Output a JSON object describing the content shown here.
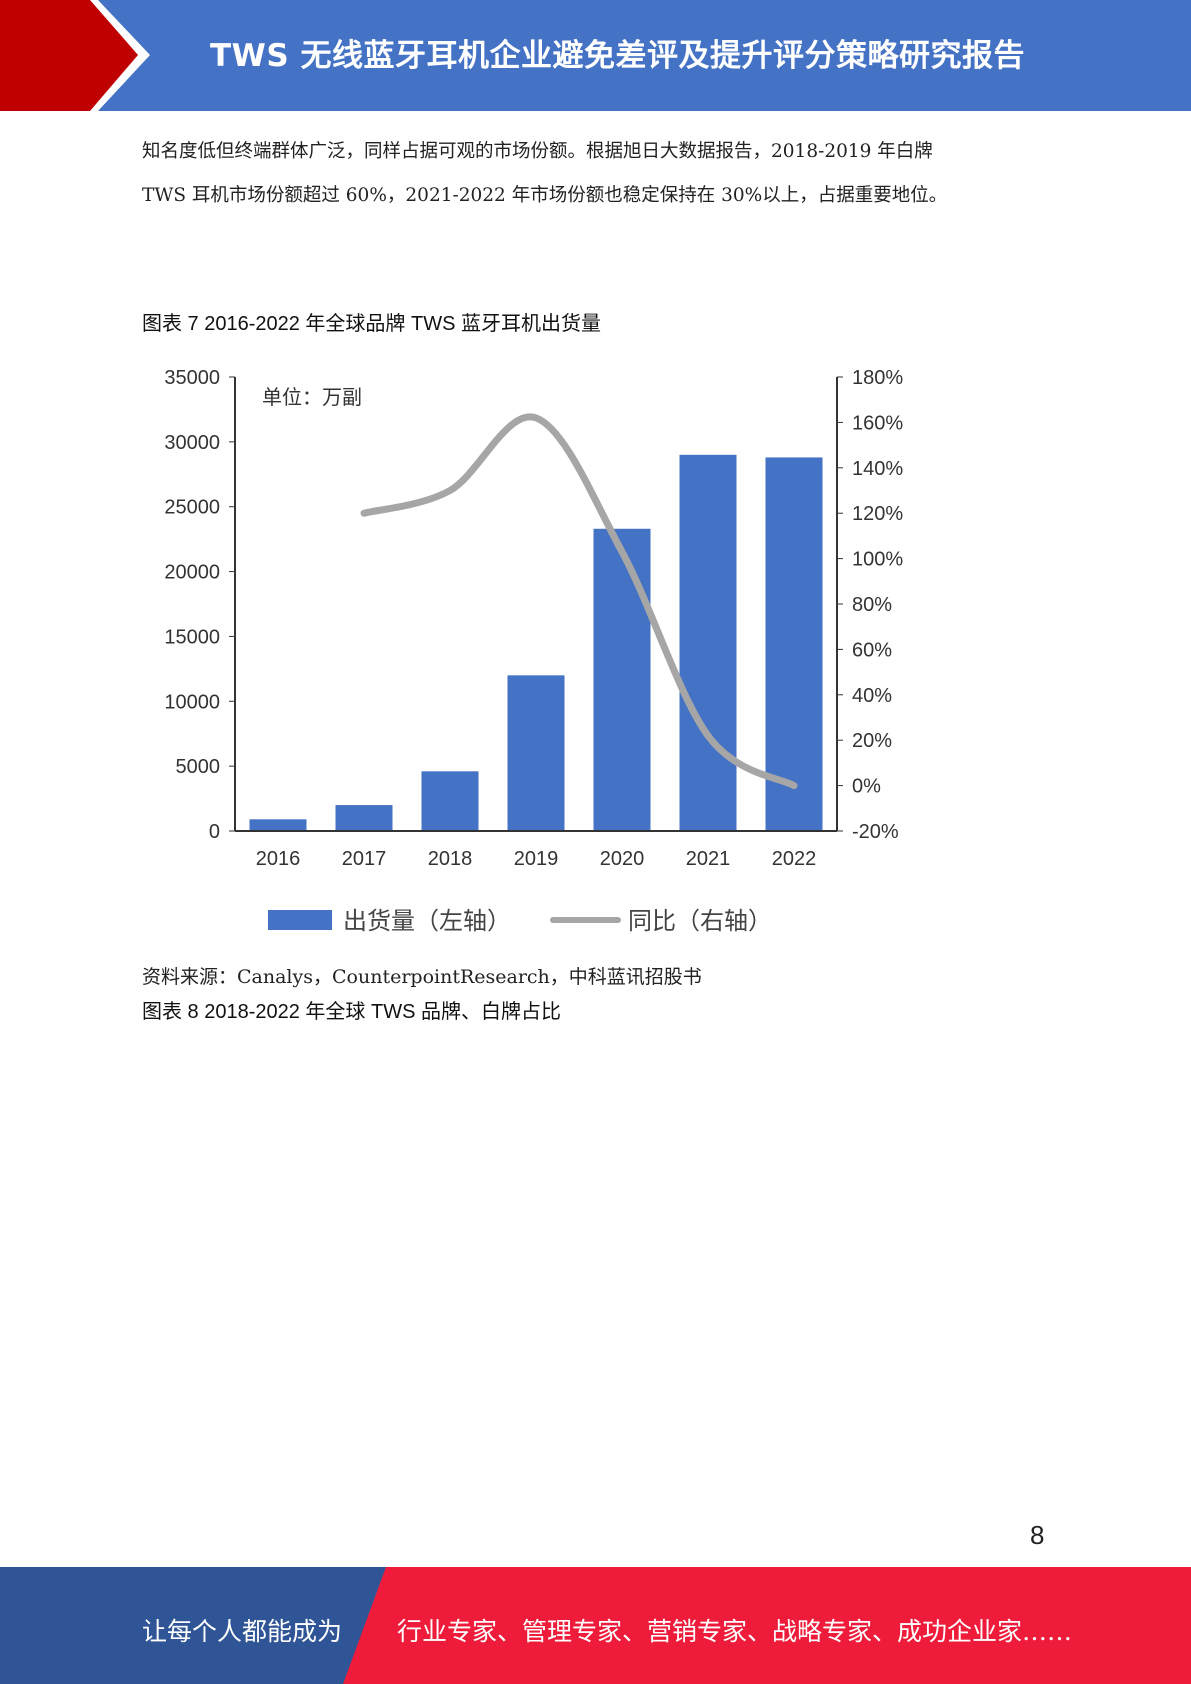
{
  "header": {
    "title": "TWS 无线蓝牙耳机企业避免差评及提升评分策略研究报告",
    "accent_color": "#c00000",
    "bar_color": "#4472c4"
  },
  "body": {
    "paragraph_lines": [
      "知名度低但终端群体广泛，同样占据可观的市场份额。根据旭日大数据报告，2018-2019 年白牌",
      "TWS 耳机市场份额超过 60%，2021-2022 年市场份额也稳定保持在 30%以上，占据重要地位。"
    ],
    "figure7_caption": "图表  7 2016-2022 年全球品牌 TWS 蓝牙耳机出货量",
    "source": "资料来源：Canalys，CounterpointResearch，中科蓝讯招股书",
    "figure8_caption": "图表  8 2018-2022 年全球 TWS 品牌、白牌占比"
  },
  "chart_data": {
    "type": "bar",
    "unit_note": "单位：万副",
    "categories": [
      "2016",
      "2017",
      "2018",
      "2019",
      "2020",
      "2021",
      "2022"
    ],
    "series": [
      {
        "name": "出货量（左轴）",
        "type": "bar",
        "axis": "left",
        "color": "#4472c4",
        "values": [
          900,
          2000,
          4600,
          12000,
          23300,
          29000,
          28800
        ]
      },
      {
        "name": "同比（右轴）",
        "type": "line",
        "axis": "right",
        "color": "#a6a6a6",
        "values": [
          null,
          120,
          130,
          162,
          103,
          22,
          0
        ]
      }
    ],
    "y_left": {
      "range": [
        0,
        35000
      ],
      "ticks": [
        "0",
        "5000",
        "10000",
        "15000",
        "20000",
        "25000",
        "30000",
        "35000"
      ]
    },
    "y_right": {
      "range": [
        -20,
        180
      ],
      "ticks": [
        "-20%",
        "0%",
        "20%",
        "40%",
        "60%",
        "80%",
        "100%",
        "120%",
        "140%",
        "160%",
        "180%"
      ]
    },
    "grid": false,
    "legend_position": "bottom"
  },
  "page": {
    "number": "8"
  },
  "footer": {
    "left_text": "让每个人都能成为",
    "right_text": "行业专家、管理专家、营销专家、战略专家、成功企业家……",
    "left_color": "#2f5597",
    "right_color": "#ee1c3a"
  }
}
